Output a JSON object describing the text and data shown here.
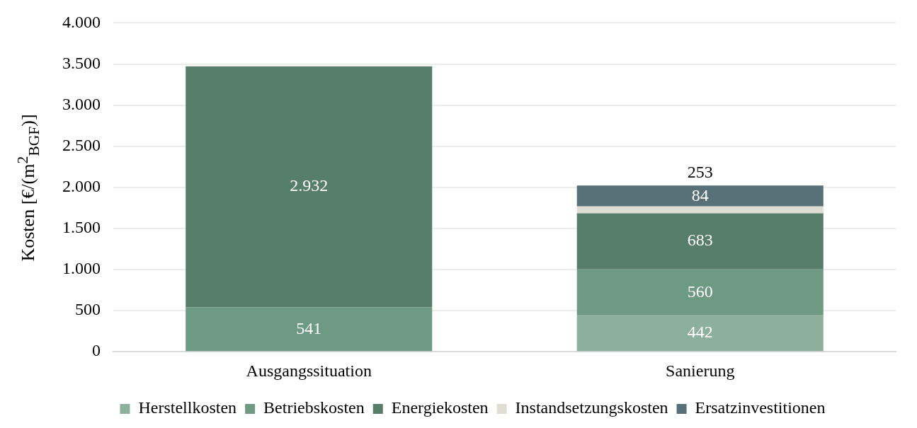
{
  "chart_data": {
    "type": "bar",
    "stacked": true,
    "ylabel": "Kosten [€/(m$^{2}$$_{BGF}$)]",
    "categories": [
      "Ausgangssituation",
      "Sanierung"
    ],
    "series": [
      {
        "name": "Herstellkosten",
        "color": "#8db09d",
        "values": [
          null,
          442
        ],
        "value_labels": [
          null,
          "442"
        ]
      },
      {
        "name": "Betriebskosten",
        "color": "#6e9a84",
        "values": [
          541,
          560
        ],
        "value_labels": [
          "541",
          "560"
        ]
      },
      {
        "name": "Energiekosten",
        "color": "#577e6a",
        "values": [
          2932,
          683
        ],
        "value_labels": [
          "2.932",
          "683"
        ]
      },
      {
        "name": "Instandsetzungskosten",
        "color": "#dfddd4",
        "values": [
          null,
          84
        ],
        "value_labels": [
          null,
          "84"
        ]
      },
      {
        "name": "Ersatzinvestitionen",
        "color": "#587179",
        "values": [
          null,
          253
        ],
        "value_labels": [
          null,
          "253"
        ]
      }
    ],
    "ylim": [
      0,
      4000
    ],
    "yticks": [
      {
        "value": 0,
        "label": "0"
      },
      {
        "value": 500,
        "label": "500"
      },
      {
        "value": 1000,
        "label": "1.000"
      },
      {
        "value": 1500,
        "label": "1.500"
      },
      {
        "value": 2000,
        "label": "2.000"
      },
      {
        "value": 2500,
        "label": "2.500"
      },
      {
        "value": 3000,
        "label": "3.000"
      },
      {
        "value": 3500,
        "label": "3.500"
      },
      {
        "value": 4000,
        "label": "4.000"
      }
    ],
    "grid": "y",
    "legend": "bottom"
  }
}
